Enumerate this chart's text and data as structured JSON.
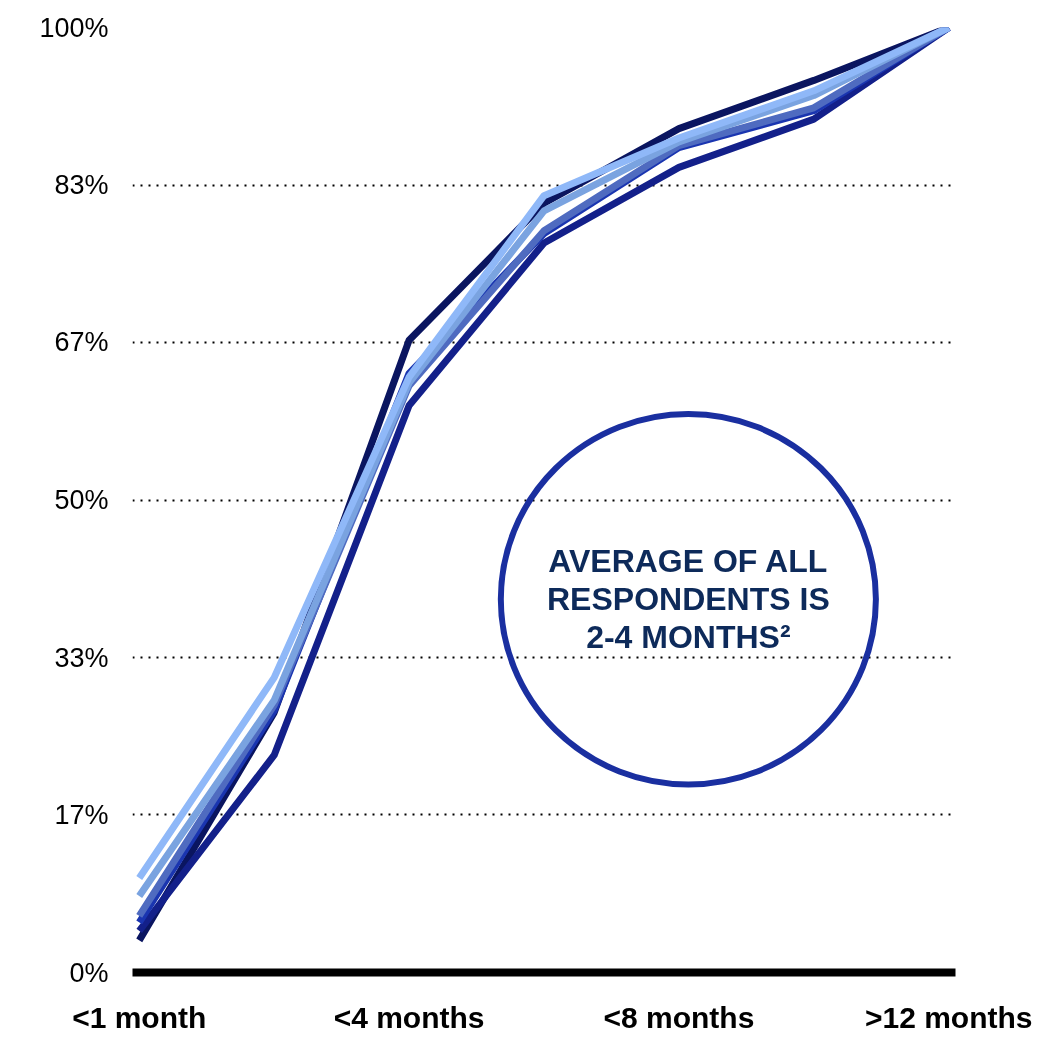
{
  "chart_data": {
    "type": "line",
    "categories": [
      "<1 month",
      null,
      "<4 months",
      null,
      "<8 months",
      null,
      ">12 months"
    ],
    "series": [
      {
        "color": "#0a1560",
        "values": [
          3.4,
          27.5,
          66.9,
          81.4,
          89.3,
          94.4,
          100
        ]
      },
      {
        "color": "#13208a",
        "values": [
          4.4,
          23.0,
          60.0,
          77.2,
          85.2,
          90.3,
          100
        ]
      },
      {
        "color": "#1a35b0",
        "values": [
          5.3,
          27.7,
          63.4,
          78.2,
          87.3,
          91.2,
          100
        ]
      },
      {
        "color": "#4f6bc0",
        "values": [
          6.0,
          28.3,
          62.1,
          78.5,
          87.5,
          91.5,
          100
        ]
      },
      {
        "color": "#7aa3e0",
        "values": [
          8.1,
          28.8,
          62.4,
          80.6,
          87.9,
          92.8,
          100
        ]
      },
      {
        "color": "#8fb8f8",
        "values": [
          10.0,
          31.2,
          63.0,
          82.2,
          88.3,
          93.3,
          100
        ]
      }
    ],
    "ylim": [
      0,
      100
    ],
    "yticks": [
      {
        "value": 0,
        "label": "0%"
      },
      {
        "value": 16.67,
        "label": "17%"
      },
      {
        "value": 33.33,
        "label": "33%"
      },
      {
        "value": 50,
        "label": "50%"
      },
      {
        "value": 66.67,
        "label": "67%"
      },
      {
        "value": 83.33,
        "label": "83%"
      },
      {
        "value": 100,
        "label": "100%"
      }
    ],
    "grid": "y",
    "annotations": [
      "AVERAGE OF ALL\nRESPONDENTS IS\n2-4 MONTHS²"
    ]
  }
}
